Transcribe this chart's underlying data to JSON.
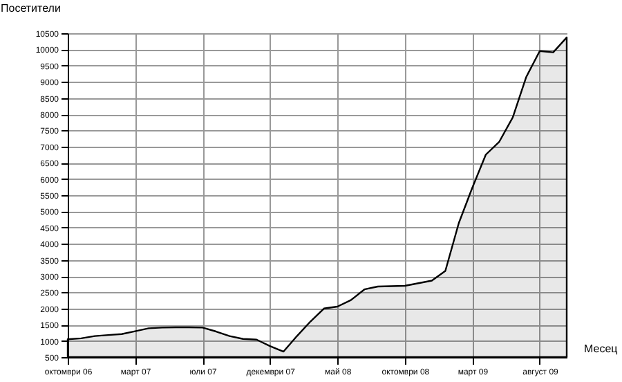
{
  "chart_data": {
    "type": "area",
    "xlabel": "Месец",
    "ylabel": "Посетители",
    "categories": [
      "октомври 06",
      null,
      null,
      null,
      null,
      "март 07",
      null,
      null,
      null,
      null,
      "юли 07",
      null,
      null,
      null,
      null,
      "декември 07",
      null,
      null,
      null,
      null,
      "май 08",
      null,
      null,
      null,
      null,
      "октомври 08",
      null,
      null,
      null,
      null,
      "март 09",
      null,
      null,
      null,
      null,
      "август 09",
      null,
      null
    ],
    "series": [
      {
        "color": "#000000",
        "values": [
          1050,
          1080,
          1150,
          1180,
          1210,
          1300,
          1390,
          1410,
          1420,
          1420,
          1410,
          1290,
          1150,
          1060,
          1040,
          840,
          670,
          1150,
          1600,
          2000,
          2060,
          2260,
          2590,
          2680,
          2690,
          2700,
          2780,
          2860,
          3160,
          4640,
          5730,
          6750,
          7150,
          7900,
          9150,
          9950,
          9910,
          10370
        ]
      }
    ],
    "ylim": [
      500,
      10500
    ],
    "yticks": [
      500,
      1000,
      1500,
      2000,
      2500,
      3000,
      3500,
      4000,
      4500,
      5000,
      5500,
      6000,
      6500,
      7000,
      7500,
      8000,
      8500,
      9000,
      9500,
      10000,
      10500
    ],
    "grid": true
  }
}
